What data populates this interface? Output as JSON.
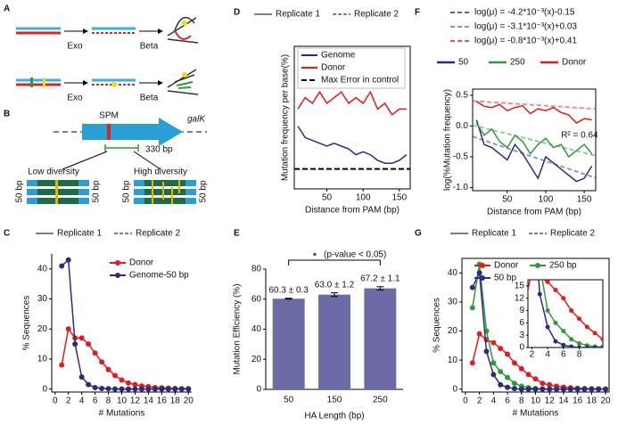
{
  "diagrams": {
    "A": {
      "panel": "A",
      "steps": [
        "Exo",
        "Beta",
        "Exo",
        "Beta"
      ]
    },
    "B": {
      "panel": "B",
      "gene": "SPM",
      "label": "galK",
      "length": "330 bp",
      "low": "Low diversity",
      "high": "High diversity",
      "flanks": [
        "50 bp",
        "50 bp",
        "50 bp",
        "50 bp"
      ]
    }
  },
  "chart_data": [
    {
      "panel": "C",
      "type": "line",
      "markers": true,
      "replicate_legend": [
        "Replicate 1",
        "Replicate 2"
      ],
      "x": [
        1,
        2,
        3,
        4,
        5,
        6,
        7,
        8,
        9,
        10,
        11,
        12,
        13,
        14,
        15,
        16,
        17,
        18,
        19,
        20
      ],
      "series": [
        {
          "name": "Donor",
          "color": "#e41a1c",
          "values": [
            8,
            20,
            17,
            17,
            15,
            12,
            9,
            6.5,
            4.5,
            3,
            2,
            1.5,
            1,
            0.8,
            0.5,
            0.4,
            0.3,
            0.2,
            0.1,
            0.1
          ]
        },
        {
          "name": "Genome-50 bp",
          "color": "#2b2d7a",
          "values": [
            41,
            43,
            15,
            4,
            1.5,
            0.5,
            0.2,
            0.1,
            0,
            0,
            0,
            0,
            0,
            0,
            0,
            0,
            0,
            0,
            0,
            0
          ]
        }
      ],
      "xlim": [
        -0.5,
        20.5
      ],
      "ylim": [
        -1,
        45
      ],
      "xticks": [
        0,
        2,
        4,
        6,
        8,
        10,
        12,
        14,
        16,
        18,
        20
      ],
      "yticks": [
        0,
        10,
        20,
        30,
        40
      ],
      "xlabel": "# Mutations",
      "ylabel": "% Sequences",
      "legend": "upper right"
    },
    {
      "panel": "D",
      "type": "line",
      "replicate_legend": [
        "Replicate 1",
        "Replicate 2"
      ],
      "x": [
        10,
        20,
        30,
        40,
        50,
        60,
        70,
        80,
        90,
        100,
        110,
        120,
        130,
        140,
        150,
        160
      ],
      "series": [
        {
          "name": "Genome",
          "color": "#2b2d7a",
          "values": [
            1.1,
            0.9,
            0.85,
            0.8,
            0.75,
            0.8,
            0.75,
            0.7,
            0.6,
            0.65,
            0.6,
            0.5,
            0.45,
            0.45,
            0.5,
            0.6
          ]
        },
        {
          "name": "Donor",
          "color": "#e41a1c",
          "values": [
            1.4,
            1.6,
            1.5,
            1.7,
            1.5,
            1.6,
            1.7,
            1.5,
            1.6,
            1.5,
            1.7,
            1.4,
            1.5,
            1.3,
            1.4,
            1.4
          ]
        }
      ],
      "hline": {
        "name": "Max Error in control",
        "value": 0.35
      },
      "xlim": [
        5,
        165
      ],
      "ylim": [
        0,
        2.5
      ],
      "xticks": [
        50,
        100,
        150
      ],
      "xlabel": "Distance from PAM (bp)",
      "ylabel": "Mutation frequency per base(%)",
      "legend": "upper right"
    },
    {
      "panel": "E",
      "type": "bar",
      "categories": [
        "50",
        "150",
        "250"
      ],
      "values": [
        60.3,
        63.0,
        67.2
      ],
      "errors": [
        0.3,
        1.2,
        1.1
      ],
      "value_labels": [
        "60.3 ± 0.3",
        "63.0 ± 1.2",
        "67.2 ± 1.1"
      ],
      "color": "#6b6ba6",
      "ylim": [
        0,
        80
      ],
      "yticks": [
        0,
        20,
        40,
        60,
        80
      ],
      "xlabel": "HA Length (bp)",
      "ylabel": "Mutation Efficiency (%)",
      "annotations": [
        "*",
        "(p-value < 0.05)"
      ]
    },
    {
      "panel": "F",
      "type": "line",
      "x": [
        10,
        20,
        30,
        40,
        50,
        60,
        70,
        80,
        90,
        100,
        110,
        120,
        130,
        140,
        150,
        160
      ],
      "series": [
        {
          "name": "50",
          "color": "#2b2d7a",
          "values": [
            0.1,
            -0.3,
            -0.35,
            -0.45,
            -0.55,
            -0.3,
            -0.45,
            -0.65,
            -0.85,
            -0.5,
            -0.6,
            -0.7,
            -0.8,
            -0.9,
            -0.85,
            -0.65
          ]
        },
        {
          "name": "250",
          "color": "#2e9a3c",
          "values": [
            0.05,
            -0.15,
            -0.05,
            -0.25,
            -0.35,
            -0.15,
            -0.25,
            -0.45,
            -0.3,
            -0.2,
            -0.35,
            -0.3,
            -0.5,
            -0.4,
            -0.3,
            -0.45
          ]
        },
        {
          "name": "Donor",
          "color": "#e41a1c",
          "values": [
            0.4,
            0.32,
            0.3,
            0.35,
            0.25,
            0.3,
            0.33,
            0.2,
            0.28,
            0.25,
            0.3,
            0.22,
            0.18,
            0.05,
            0.12,
            0.1
          ]
        }
      ],
      "fits": [
        {
          "label": "log(μ) = -4.2*10⁻³(x)-0.15",
          "slope": -0.0042,
          "intercept": -0.15,
          "color": "#2b2d7a"
        },
        {
          "label": "log(μ) = -3.1*10⁻³(x)+0.03",
          "slope": -0.0031,
          "intercept": 0.03,
          "color": "#2e9a3c"
        },
        {
          "label": "log(μ) = -0.8*10⁻³(x)+0.41",
          "slope": -0.0008,
          "intercept": 0.41,
          "color": "#e41a1c"
        }
      ],
      "xlim": [
        5,
        165
      ],
      "ylim": [
        -1.05,
        0.6
      ],
      "xticks": [
        50,
        100,
        150
      ],
      "yticks": [
        {
          "value": -1,
          "label": "-1.0"
        },
        {
          "value": -0.5,
          "label": "-0.5"
        },
        {
          "value": 0,
          "label": "0.0"
        },
        {
          "value": 0.5,
          "label": "0.5"
        }
      ],
      "xlabel": "Distance from PAM (bp)",
      "ylabel": "log(%Mutation frequency)",
      "annotations": [
        "R² = 0.64"
      ],
      "legend": "above"
    },
    {
      "panel": "G",
      "type": "line",
      "markers": true,
      "replicate_legend": [
        "Replicate 1",
        "Replicate 2"
      ],
      "x": [
        1,
        2,
        3,
        4,
        5,
        6,
        7,
        8,
        9,
        10,
        11,
        12,
        13,
        14,
        15,
        16,
        17,
        18,
        19,
        20
      ],
      "series": [
        {
          "name": "Donor",
          "color": "#e41a1c",
          "values": [
            9,
            19,
            17,
            16,
            14,
            12,
            9,
            7,
            5,
            3.5,
            2,
            1.5,
            1,
            0.7,
            0.5,
            0.3,
            0.2,
            0.1,
            0.1,
            0
          ]
        },
        {
          "name": "250 bp",
          "color": "#2e9a3c",
          "values": [
            28,
            43,
            20,
            9,
            6,
            4,
            2,
            1,
            0.5,
            0.2,
            0.1,
            0,
            0,
            0,
            0,
            0,
            0,
            0,
            0,
            0
          ]
        },
        {
          "name": "50 bp",
          "color": "#2b2d7a",
          "values": [
            35,
            40,
            13,
            5,
            1.5,
            0.6,
            0.2,
            0,
            0,
            0,
            0,
            0,
            0,
            0,
            0,
            0,
            0,
            0,
            0,
            0
          ]
        }
      ],
      "xlim": [
        -0.5,
        20.5
      ],
      "ylim": [
        -1,
        45
      ],
      "xticks": [
        0,
        2,
        4,
        6,
        8,
        10,
        12,
        14,
        16,
        18,
        20
      ],
      "yticks": [
        0,
        10,
        20,
        30,
        40
      ],
      "xlabel": "# Mutations",
      "ylabel": "% Sequences",
      "legend": "upper left",
      "inset": {
        "xlim": [
          1.5,
          11
        ],
        "ylim": [
          0,
          16.5
        ],
        "xticks": [
          2,
          4,
          6,
          8
        ],
        "yticks": [
          0,
          3,
          6,
          9,
          12,
          15
        ]
      }
    }
  ]
}
